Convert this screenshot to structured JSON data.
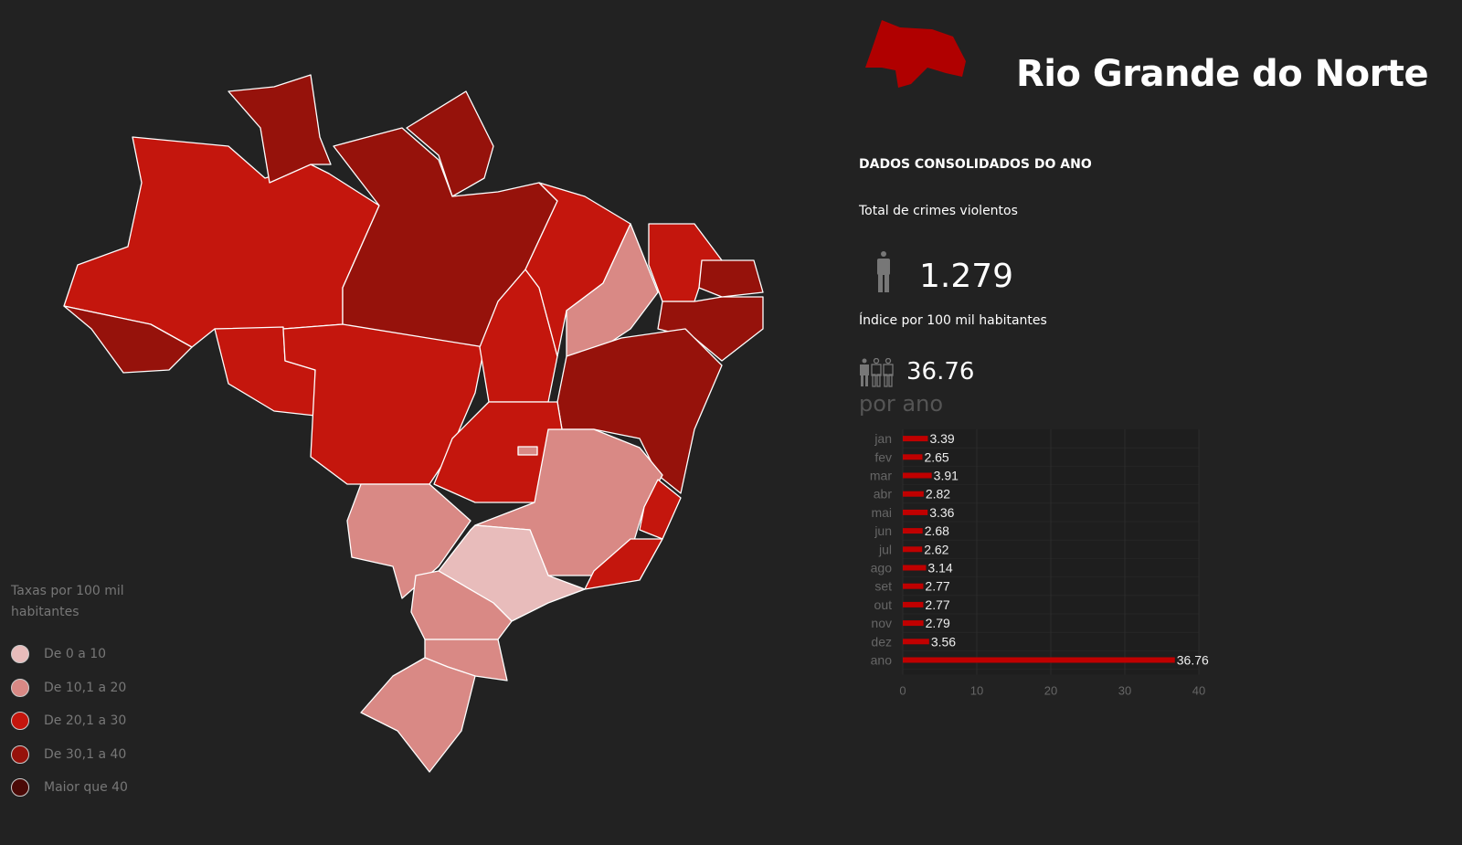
{
  "state": {
    "name": "Rio Grande do Norte",
    "color": "#b00000"
  },
  "panel": {
    "section_title": "DADOS CONSOLIDADOS DO ANO",
    "total_label": "Total de crimes violentos",
    "total_value": "1.279",
    "index_label": "Índice por 100 mil habitantes",
    "index_value": "36.76",
    "per_year_label": "por ano"
  },
  "legend": {
    "title": "Taxas por 100 mil habitantes",
    "items": [
      {
        "label": "De 0 a 10",
        "color": "#e8bcbb"
      },
      {
        "label": "De 10,1 a 20",
        "color": "#d98985"
      },
      {
        "label": "De 20,1 a 30",
        "color": "#c4160d"
      },
      {
        "label": "De 30,1 a 40",
        "color": "#96120b"
      },
      {
        "label": "Maior que 40",
        "color": "#4a0906"
      }
    ]
  },
  "chart_data": {
    "type": "bar",
    "orientation": "horizontal",
    "categories": [
      "jan",
      "fev",
      "mar",
      "abr",
      "mai",
      "jun",
      "jul",
      "ago",
      "set",
      "out",
      "nov",
      "dez",
      "ano"
    ],
    "values": [
      3.39,
      2.65,
      3.91,
      2.82,
      3.36,
      2.68,
      2.62,
      3.14,
      2.77,
      2.77,
      2.79,
      3.56,
      36.76
    ],
    "value_labels": [
      "3.39",
      "2.65",
      "3.91",
      "2.82",
      "3.36",
      "2.68",
      "2.62",
      "3.14",
      "2.77",
      "2.77",
      "2.79",
      "3.56",
      "36.76"
    ],
    "xlim": [
      0,
      40
    ],
    "xticks": [
      0,
      10,
      20,
      30,
      40
    ],
    "bar_color": "#c00000",
    "grid": true,
    "title": "",
    "xlabel": "",
    "ylabel": ""
  }
}
